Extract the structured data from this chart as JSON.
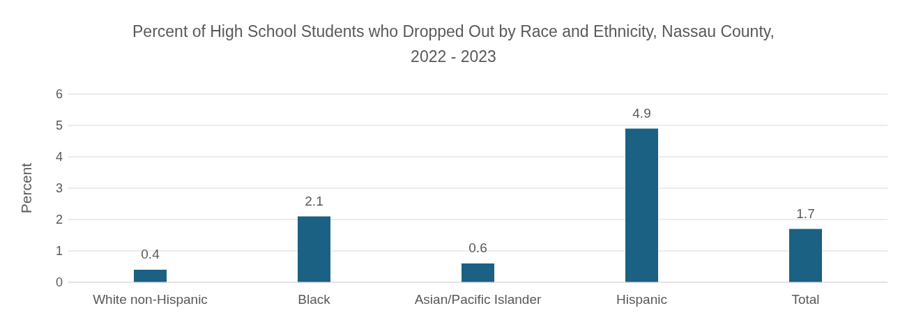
{
  "chart_data": {
    "type": "bar",
    "title": "Percent of High School Students who Dropped Out by Race and Ethnicity, Nassau County, 2022 - 2023",
    "ylabel": "Percent",
    "categories": [
      "White non-Hispanic",
      "Black",
      "Asian/Pacific Islander",
      "Hispanic",
      "Total"
    ],
    "values": [
      0.4,
      2.1,
      0.6,
      4.9,
      1.7
    ],
    "color": "#1a6184",
    "ylim": [
      0,
      6
    ],
    "yticks": [
      0,
      1,
      2,
      3,
      4,
      5,
      6
    ],
    "grid": "y",
    "data_labels": true
  }
}
